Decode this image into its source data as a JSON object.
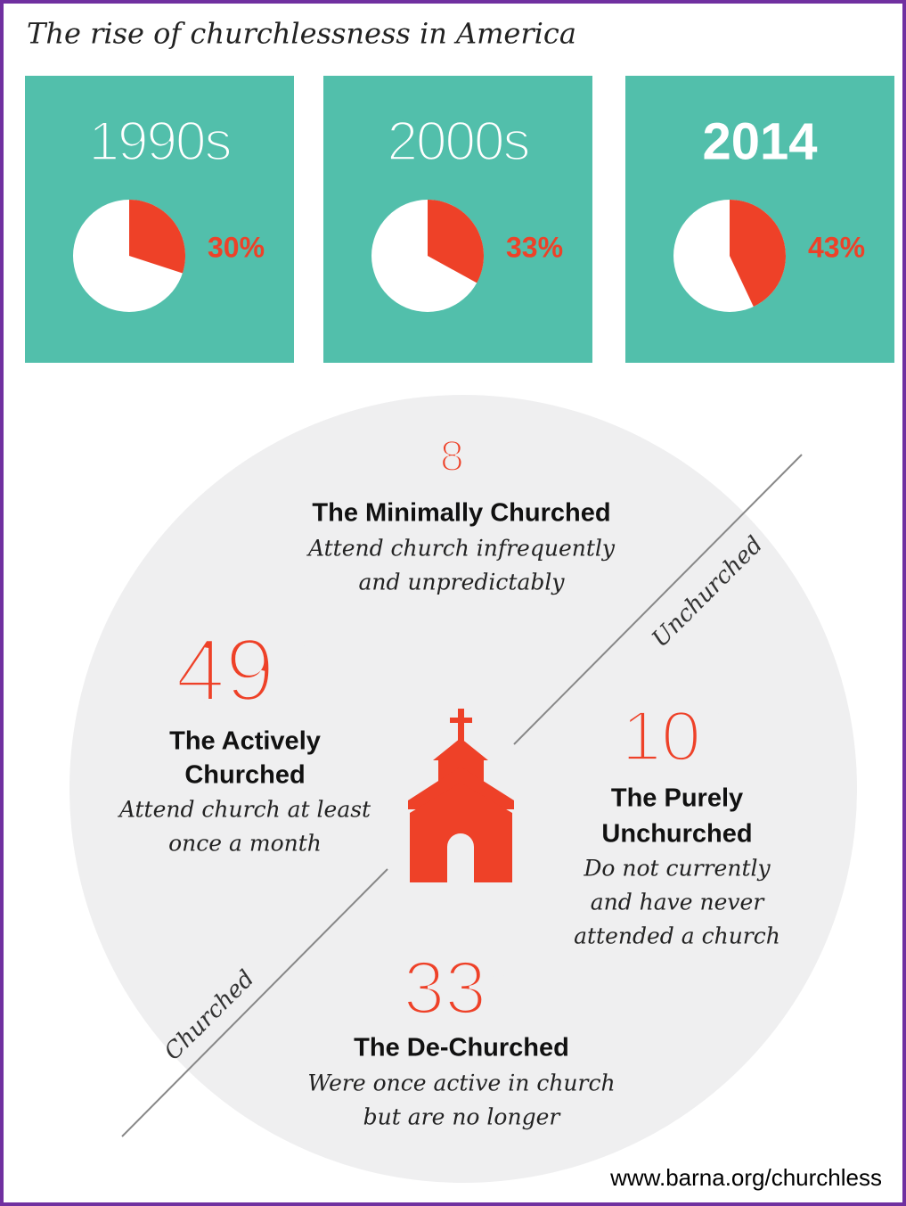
{
  "title": "The rise of churchlessness in America",
  "chart_data": [
    {
      "type": "pie",
      "title": "1990s",
      "values": [
        30
      ],
      "value_labels": [
        "30%"
      ],
      "colors": [
        "#ee4128"
      ]
    },
    {
      "type": "pie",
      "title": "2000s",
      "values": [
        33
      ],
      "value_labels": [
        "33%"
      ],
      "colors": [
        "#ee4128"
      ]
    },
    {
      "type": "pie",
      "title": "2014",
      "values": [
        43
      ],
      "value_labels": [
        "43%"
      ],
      "colors": [
        "#ee4128"
      ]
    }
  ],
  "segments": [
    {
      "percent": "8%",
      "name": [
        "The Minimally Churched"
      ],
      "description": [
        "Attend church infrequently",
        "and unpredictably"
      ]
    },
    {
      "percent": "49%",
      "name": [
        "The Actively",
        "Churched"
      ],
      "description": [
        "Attend church at least",
        "once a month"
      ]
    },
    {
      "percent": "10%",
      "name": [
        "The Purely",
        "Unchurched"
      ],
      "description": [
        "Do not currently",
        "and have never",
        "attended a church"
      ]
    },
    {
      "percent": "33%",
      "name": [
        "The De-Churched"
      ],
      "description": [
        "Were once active in church",
        "but are no longer"
      ]
    }
  ],
  "divider_labels": [
    "Unchurched",
    "Churched"
  ],
  "source": "www.barna.org/churchless"
}
